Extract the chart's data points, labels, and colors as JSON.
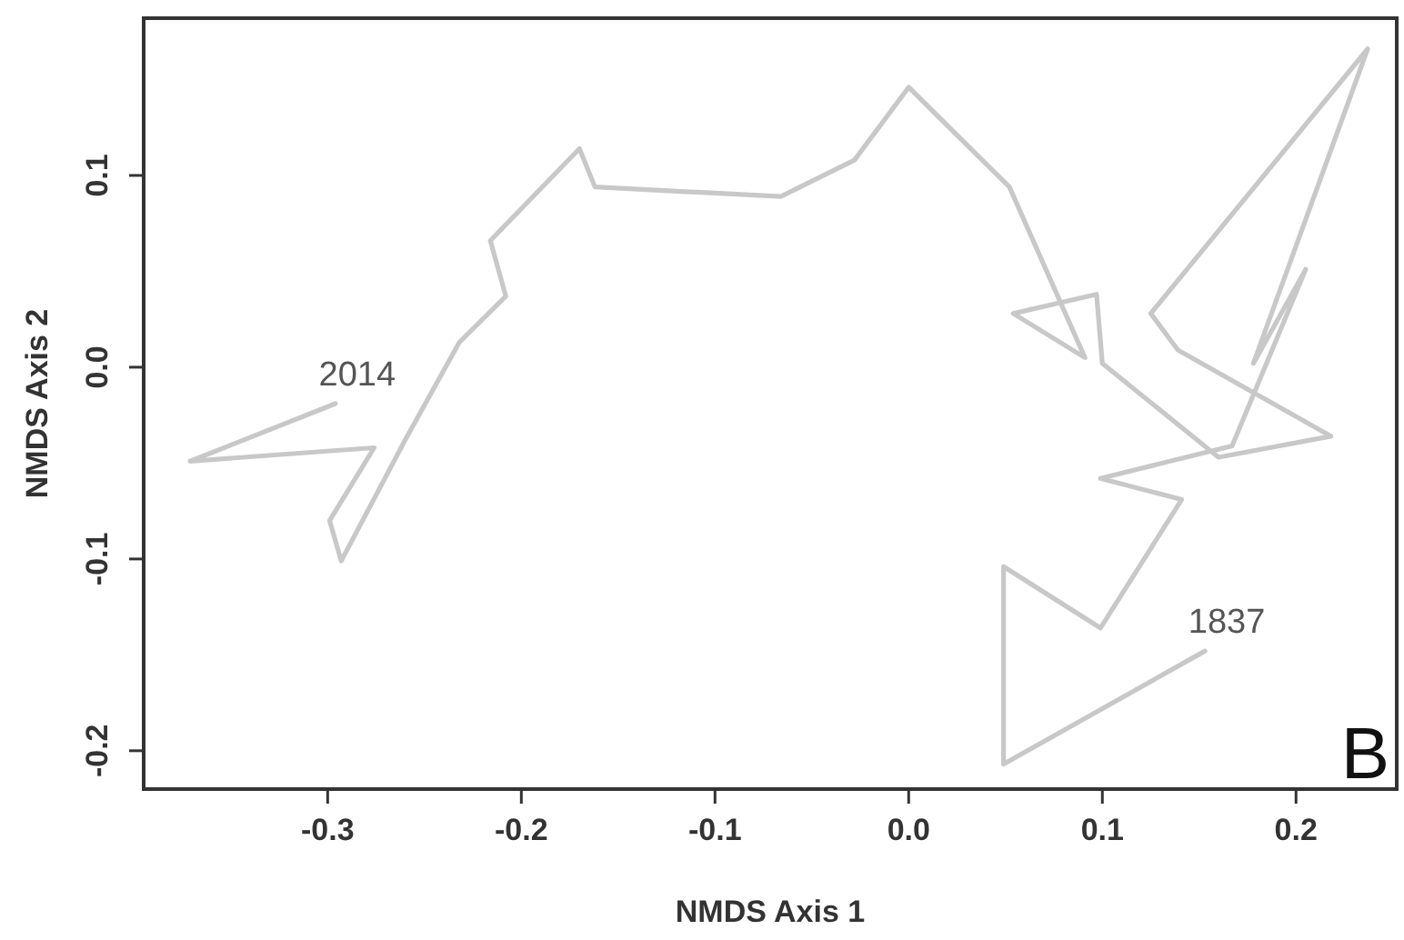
{
  "chart_data": {
    "type": "line",
    "xlabel": "NMDS Axis 1",
    "ylabel": "NMDS Axis 2",
    "xlim": [
      -0.395,
      0.252
    ],
    "ylim": [
      -0.22,
      0.182
    ],
    "xticks": [
      {
        "value": -0.3,
        "label": "-0.3"
      },
      {
        "value": -0.2,
        "label": "-0.2"
      },
      {
        "value": -0.1,
        "label": "-0.1"
      },
      {
        "value": 0,
        "label": "0.0"
      },
      {
        "value": 0.1,
        "label": "0.1"
      },
      {
        "value": 0.2,
        "label": "0.2"
      }
    ],
    "yticks": [
      {
        "value": -0.2,
        "label": "-0.2"
      },
      {
        "value": -0.1,
        "label": "-0.1"
      },
      {
        "value": 0,
        "label": "0.0"
      },
      {
        "value": 0.1,
        "label": "0.1"
      }
    ],
    "grid": false,
    "marker": "none",
    "line_style": "solid",
    "series": [
      {
        "color": "#c8c8c8",
        "x": [
          -0.296,
          -0.371,
          -0.276,
          -0.299,
          -0.293,
          -0.26,
          -0.232,
          -0.208,
          -0.216,
          -0.17,
          -0.162,
          -0.066,
          -0.028,
          0,
          0.052,
          0.091,
          0.054,
          0.097,
          0.1,
          0.16,
          0.218,
          0.139,
          0.125,
          0.237,
          0.178,
          0.205,
          0.167,
          0.099,
          0.141,
          0.099,
          0.049,
          0.049,
          0.153
        ],
        "values": [
          -0.019,
          -0.049,
          -0.042,
          -0.08,
          -0.101,
          -0.038,
          0.013,
          0.037,
          0.066,
          0.114,
          0.094,
          0.089,
          0.108,
          0.146,
          0.094,
          0.005,
          0.028,
          0.038,
          0.002,
          -0.047,
          -0.036,
          0.009,
          0.028,
          0.166,
          0.002,
          0.051,
          -0.041,
          -0.058,
          -0.069,
          -0.136,
          -0.104,
          -0.207,
          -0.148
        ]
      }
    ],
    "annotations": [
      {
        "text": "2014",
        "x": -0.296,
        "y": -0.019
      },
      {
        "text": "1837",
        "x": 0.153,
        "y": -0.148
      },
      "B"
    ]
  }
}
